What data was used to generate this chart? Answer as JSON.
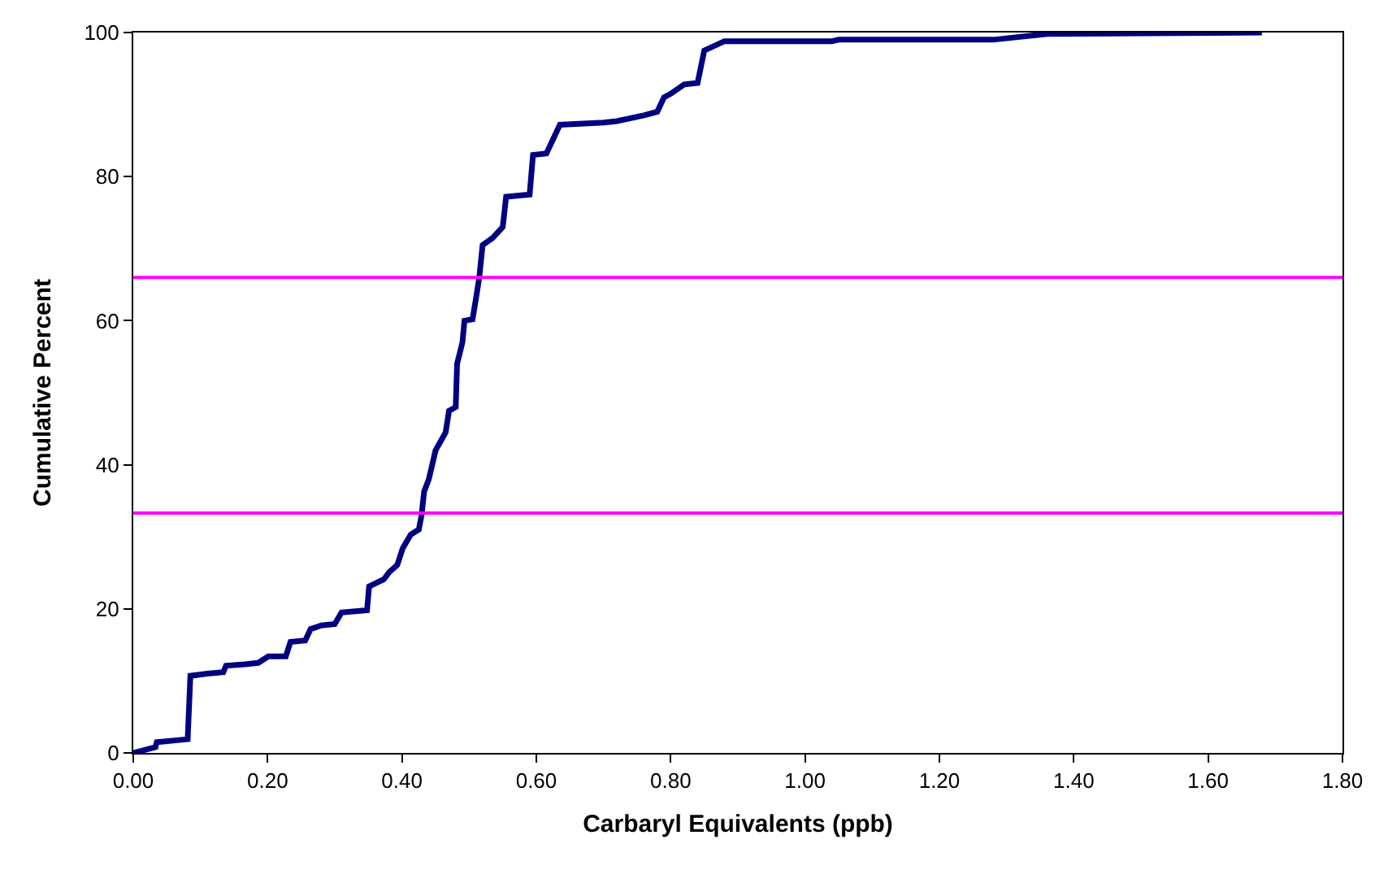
{
  "chart_data": {
    "type": "line",
    "xlabel": "Carbaryl Equivalents (ppb)",
    "ylabel": "Cumulative Percent",
    "series": [
      {
        "color": "#000080",
        "x": [
          0,
          0.033,
          0.035,
          0.081,
          0.085,
          0.11,
          0.134,
          0.138,
          0.166,
          0.186,
          0.201,
          0.227,
          0.234,
          0.256,
          0.264,
          0.28,
          0.3,
          0.31,
          0.348,
          0.351,
          0.373,
          0.381,
          0.393,
          0.401,
          0.413,
          0.425,
          0.429,
          0.433,
          0.44,
          0.45,
          0.465,
          0.47,
          0.48,
          0.482,
          0.49,
          0.493,
          0.505,
          0.51,
          0.515,
          0.52,
          0.535,
          0.55,
          0.555,
          0.59,
          0.595,
          0.615,
          0.635,
          0.7,
          0.72,
          0.76,
          0.78,
          0.79,
          0.8,
          0.82,
          0.84,
          0.85,
          0.88,
          1.04,
          1.05,
          1.28,
          1.36,
          1.68
        ],
        "values": [
          0,
          0.8,
          1.5,
          1.9,
          10.7,
          11,
          11.2,
          12.1,
          12.3,
          12.5,
          13.4,
          13.4,
          15.4,
          15.6,
          17.2,
          17.7,
          17.9,
          19.5,
          19.8,
          23.1,
          24.1,
          25.1,
          26.1,
          28.4,
          30.3,
          31,
          32.9,
          36.3,
          38,
          42,
          44.5,
          47.5,
          48,
          54,
          57,
          60,
          60.2,
          63,
          66,
          70.5,
          71.5,
          73,
          77.2,
          77.5,
          83,
          83.2,
          87.2,
          87.5,
          87.7,
          88.5,
          89,
          91,
          91.5,
          92.8,
          93,
          97.5,
          98.8,
          98.8,
          99,
          99,
          99.8,
          100
        ]
      }
    ],
    "xlim": [
      0,
      1.8
    ],
    "ylim": [
      0,
      100
    ],
    "xticks": [
      {
        "value": 0,
        "label": "0.00"
      },
      {
        "value": 0.2,
        "label": "0.20"
      },
      {
        "value": 0.4,
        "label": "0.40"
      },
      {
        "value": 0.6,
        "label": "0.60"
      },
      {
        "value": 0.8,
        "label": "0.80"
      },
      {
        "value": 1,
        "label": "1.00"
      },
      {
        "value": 1.2,
        "label": "1.20"
      },
      {
        "value": 1.4,
        "label": "1.40"
      },
      {
        "value": 1.6,
        "label": "1.60"
      },
      {
        "value": 1.8,
        "label": "1.80"
      }
    ],
    "yticks": [
      0,
      20,
      40,
      60,
      80,
      100
    ],
    "ref_lines": [
      {
        "axis": "y",
        "value": 66,
        "color": "#ff00ff"
      },
      {
        "axis": "y",
        "value": 33.3,
        "color": "#ff00ff"
      }
    ],
    "grid": false,
    "marker": "none",
    "line_style": "solid"
  }
}
